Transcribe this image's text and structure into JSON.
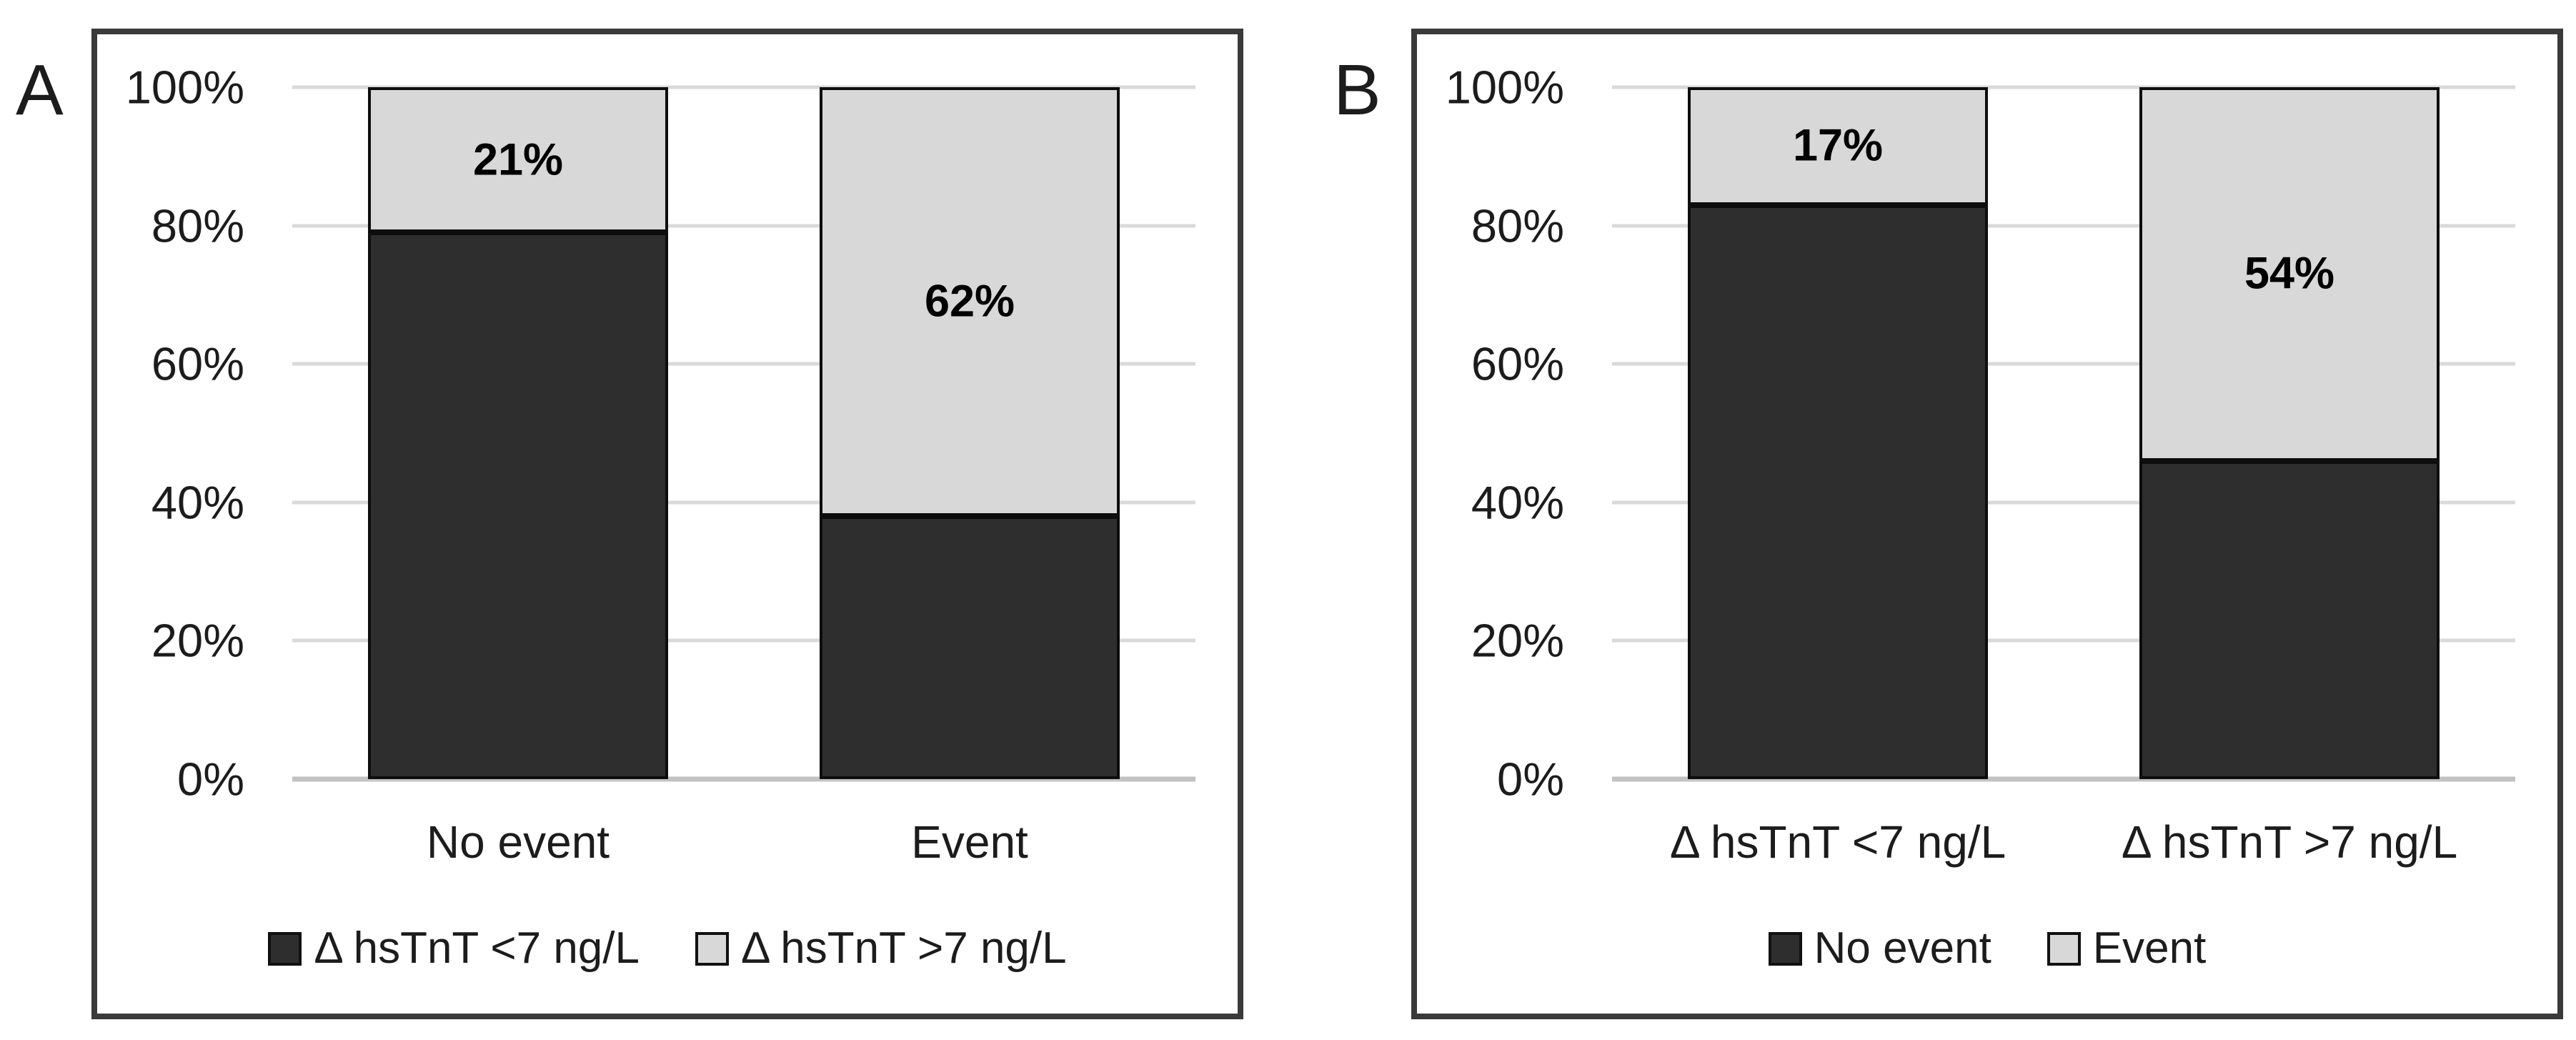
{
  "figure": {
    "background": "#ffffff",
    "colors": {
      "dark": "#2e2e2e",
      "light": "#d8d8d8",
      "gridline": "#d9d9d9",
      "axis_line": "#c2c2c2",
      "panel_border": "#3a3a3a",
      "text": "#1c1c1c"
    },
    "panels": [
      {
        "letter": "A",
        "y_ticks": [
          "100%",
          "80%",
          "60%",
          "40%",
          "20%",
          "0%"
        ],
        "x_labels": [
          "No event",
          "Event"
        ],
        "bar_labels": [
          "21%",
          "62%"
        ],
        "legend": [
          {
            "label": "Δ hsTnT <7 ng/L",
            "swatch": "dark"
          },
          {
            "label": "Δ hsTnT >7 ng/L",
            "swatch": "light"
          }
        ]
      },
      {
        "letter": "B",
        "y_ticks": [
          "100%",
          "80%",
          "60%",
          "40%",
          "20%",
          "0%"
        ],
        "x_labels": [
          "Δ hsTnT <7 ng/L",
          "Δ hsTnT >7 ng/L"
        ],
        "bar_labels": [
          "17%",
          "54%"
        ],
        "legend": [
          {
            "label": "No event",
            "swatch": "dark"
          },
          {
            "label": "Event",
            "swatch": "light"
          }
        ]
      }
    ]
  },
  "chart_data": [
    {
      "type": "bar",
      "subtype": "100%-stacked-column",
      "panel": "A",
      "categories": [
        "No event",
        "Event"
      ],
      "series": [
        {
          "name": "Δ hsTnT <7 ng/L",
          "color": "#2e2e2e",
          "values": [
            79,
            38
          ]
        },
        {
          "name": "Δ hsTnT >7 ng/L",
          "color": "#d8d8d8",
          "values": [
            21,
            62
          ]
        }
      ],
      "data_labels": {
        "series": "Δ hsTnT >7 ng/L",
        "labels": [
          "21%",
          "62%"
        ]
      },
      "title": "",
      "xlabel": "",
      "ylabel": "",
      "ylim": [
        0,
        100
      ],
      "yticks": [
        "0%",
        "20%",
        "40%",
        "60%",
        "80%",
        "100%"
      ],
      "grid": true,
      "legend_position": "bottom"
    },
    {
      "type": "bar",
      "subtype": "100%-stacked-column",
      "panel": "B",
      "categories": [
        "Δ hsTnT <7 ng/L",
        "Δ hsTnT >7 ng/L"
      ],
      "series": [
        {
          "name": "No event",
          "color": "#2e2e2e",
          "values": [
            83,
            46
          ]
        },
        {
          "name": "Event",
          "color": "#d8d8d8",
          "values": [
            17,
            54
          ]
        }
      ],
      "data_labels": {
        "series": "Event",
        "labels": [
          "17%",
          "54%"
        ]
      },
      "title": "",
      "xlabel": "",
      "ylabel": "",
      "ylim": [
        0,
        100
      ],
      "yticks": [
        "0%",
        "20%",
        "40%",
        "60%",
        "80%",
        "100%"
      ],
      "grid": true,
      "legend_position": "bottom"
    }
  ]
}
